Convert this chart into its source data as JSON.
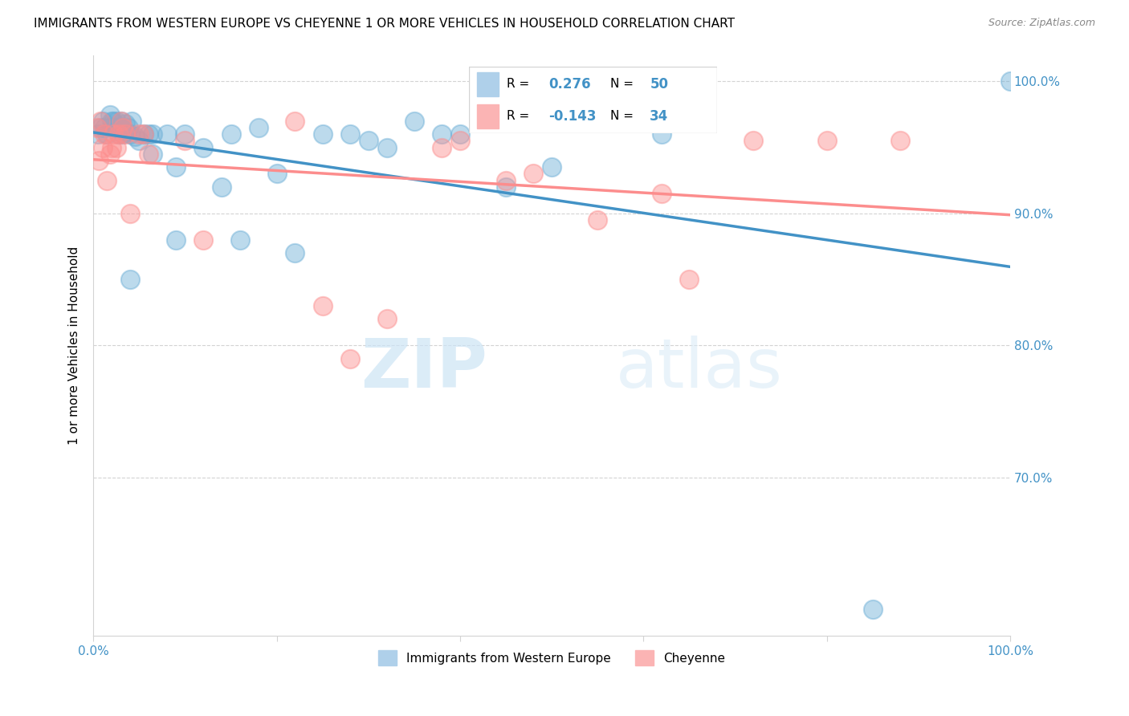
{
  "title": "IMMIGRANTS FROM WESTERN EUROPE VS CHEYENNE 1 OR MORE VEHICLES IN HOUSEHOLD CORRELATION CHART",
  "source": "Source: ZipAtlas.com",
  "xlabel": "",
  "ylabel": "1 or more Vehicles in Household",
  "xlim": [
    0,
    1.0
  ],
  "ylim": [
    0.58,
    1.02
  ],
  "yticks": [
    0.7,
    0.8,
    0.9,
    1.0
  ],
  "ytick_labels": [
    "70.0%",
    "80.0%",
    "90.0%",
    "100.0%"
  ],
  "xticks": [
    0.0,
    0.2,
    0.4,
    0.6,
    0.8,
    1.0
  ],
  "xtick_labels": [
    "0.0%",
    "",
    "",
    "",
    "",
    "100.0%"
  ],
  "blue_color": "#6baed6",
  "pink_color": "#fc8d8d",
  "blue_line_color": "#4292c6",
  "pink_line_color": "#fc8d8d",
  "watermark_zip": "ZIP",
  "watermark_atlas": "atlas",
  "blue_scatter_x": [
    0.005,
    0.008,
    0.01,
    0.012,
    0.015,
    0.018,
    0.02,
    0.02,
    0.022,
    0.025,
    0.025,
    0.028,
    0.03,
    0.03,
    0.032,
    0.035,
    0.035,
    0.038,
    0.04,
    0.04,
    0.042,
    0.045,
    0.05,
    0.055,
    0.06,
    0.065,
    0.065,
    0.08,
    0.09,
    0.09,
    0.1,
    0.12,
    0.14,
    0.15,
    0.16,
    0.18,
    0.2,
    0.22,
    0.25,
    0.28,
    0.3,
    0.32,
    0.35,
    0.38,
    0.4,
    0.45,
    0.5,
    0.62,
    0.85,
    1.0
  ],
  "blue_scatter_y": [
    0.96,
    0.965,
    0.97,
    0.965,
    0.96,
    0.975,
    0.965,
    0.97,
    0.97,
    0.965,
    0.97,
    0.96,
    0.965,
    0.97,
    0.96,
    0.968,
    0.962,
    0.965,
    0.85,
    0.96,
    0.97,
    0.958,
    0.955,
    0.96,
    0.96,
    0.96,
    0.945,
    0.96,
    0.935,
    0.88,
    0.96,
    0.95,
    0.92,
    0.96,
    0.88,
    0.965,
    0.93,
    0.87,
    0.96,
    0.96,
    0.955,
    0.95,
    0.97,
    0.96,
    0.96,
    0.92,
    0.935,
    0.96,
    0.6,
    1.0
  ],
  "pink_scatter_x": [
    0.004,
    0.006,
    0.008,
    0.01,
    0.012,
    0.015,
    0.018,
    0.02,
    0.022,
    0.025,
    0.028,
    0.03,
    0.032,
    0.035,
    0.04,
    0.05,
    0.055,
    0.06,
    0.1,
    0.12,
    0.22,
    0.25,
    0.28,
    0.32,
    0.38,
    0.4,
    0.45,
    0.48,
    0.55,
    0.62,
    0.65,
    0.72,
    0.8,
    0.88
  ],
  "pink_scatter_y": [
    0.965,
    0.94,
    0.97,
    0.95,
    0.96,
    0.925,
    0.945,
    0.95,
    0.96,
    0.95,
    0.96,
    0.97,
    0.965,
    0.96,
    0.9,
    0.96,
    0.96,
    0.945,
    0.955,
    0.88,
    0.97,
    0.83,
    0.79,
    0.82,
    0.95,
    0.955,
    0.925,
    0.93,
    0.895,
    0.915,
    0.85,
    0.955,
    0.955,
    0.955
  ],
  "legend_r1_val": "0.276",
  "legend_n1_val": "50",
  "legend_r2_val": "-0.143",
  "legend_n2_val": "34",
  "legend_label1": "Immigrants from Western Europe",
  "legend_label2": "Cheyenne"
}
